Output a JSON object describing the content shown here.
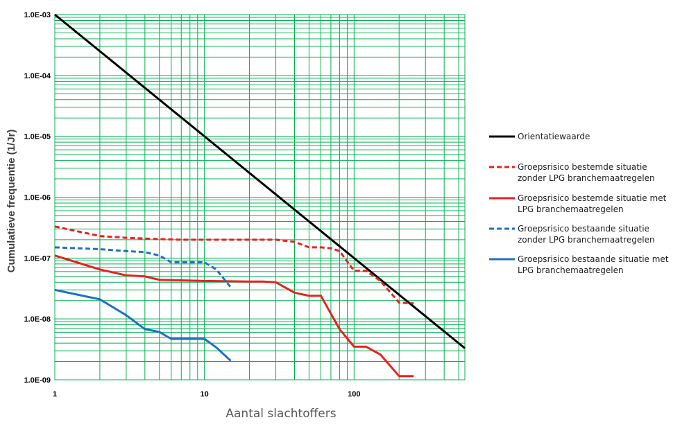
{
  "chart_data": {
    "type": "line",
    "xlabel": "Aantal slachtoffers",
    "ylabel": "Cumulatieve frequentie (1/Jr)",
    "xscale": "log",
    "yscale": "log",
    "xlim": [
      1,
      550
    ],
    "ylim": [
      1e-09,
      0.001
    ],
    "grid": true,
    "grid_color": "#00b050",
    "legend_position": "right",
    "x_ticks": [
      {
        "value": 1,
        "label": "1"
      },
      {
        "value": 10,
        "label": "10"
      },
      {
        "value": 100,
        "label": "100"
      }
    ],
    "y_ticks": [
      {
        "value": 0.001,
        "label": "1.0E-03"
      },
      {
        "value": 0.0001,
        "label": "1.0E-04"
      },
      {
        "value": 1e-05,
        "label": "1.0E-05"
      },
      {
        "value": 1e-06,
        "label": "1.0E-06"
      },
      {
        "value": 1e-07,
        "label": "1.0E-07"
      },
      {
        "value": 1e-08,
        "label": "1.0E-08"
      },
      {
        "value": 1e-09,
        "label": "1.0E-09"
      }
    ],
    "series": [
      {
        "name": "Orientatiewaarde",
        "color": "#000000",
        "dash": "solid",
        "x": [
          1,
          550
        ],
        "y": [
          0.001,
          3.3e-09
        ]
      },
      {
        "name": "Groepsrisico bestemde situatie zonder LPG branchemaatregelen",
        "color": "#e8211f",
        "dash": "dashed",
        "x": [
          1,
          2,
          3,
          5,
          7,
          10,
          20,
          30,
          40,
          50,
          60,
          70,
          80,
          100,
          120,
          150,
          200,
          250
        ],
        "y": [
          3.3e-07,
          2.3e-07,
          2.15e-07,
          2.05e-07,
          2e-07,
          2e-07,
          2e-07,
          2e-07,
          1.85e-07,
          1.5e-07,
          1.5e-07,
          1.45e-07,
          1.3e-07,
          6.2e-08,
          6.2e-08,
          4.2e-08,
          1.85e-08,
          1.8e-08
        ]
      },
      {
        "name": "Groepsrisico bestemde situatie met LPG branchemaatregelen",
        "color": "#e8211f",
        "dash": "solid",
        "x": [
          1,
          2,
          3,
          4,
          5,
          7,
          10,
          20,
          25,
          30,
          40,
          50,
          60,
          80,
          100,
          120,
          150,
          200,
          250
        ],
        "y": [
          1.1e-07,
          6.5e-08,
          5.2e-08,
          5e-08,
          4.4e-08,
          4.3e-08,
          4.2e-08,
          4.1e-08,
          4.1e-08,
          4e-08,
          2.7e-08,
          2.4e-08,
          2.4e-08,
          6.8e-09,
          3.5e-09,
          3.5e-09,
          2.6e-09,
          1.15e-09,
          1.15e-09
        ]
      },
      {
        "name": "Groepsrisico bestaande situatie zonder LPG branchemaatregelen",
        "color": "#1f70c1",
        "dash": "dashed",
        "x": [
          1,
          2,
          3,
          4,
          5,
          6,
          7,
          10,
          12,
          15
        ],
        "y": [
          1.5e-07,
          1.4e-07,
          1.3e-07,
          1.25e-07,
          1.1e-07,
          8.5e-08,
          8.5e-08,
          8.5e-08,
          6.5e-08,
          3.3e-08
        ]
      },
      {
        "name": "Groepsrisico bestaande situatie met LPG branchemaatregelen",
        "color": "#1f70c1",
        "dash": "solid",
        "x": [
          1,
          2,
          3,
          4,
          5,
          6,
          7,
          10,
          12,
          15
        ],
        "y": [
          3e-08,
          2.1e-08,
          1.15e-08,
          6.8e-09,
          6.1e-09,
          4.7e-09,
          4.7e-09,
          4.7e-09,
          3.4e-09,
          2.05e-09
        ]
      }
    ]
  }
}
